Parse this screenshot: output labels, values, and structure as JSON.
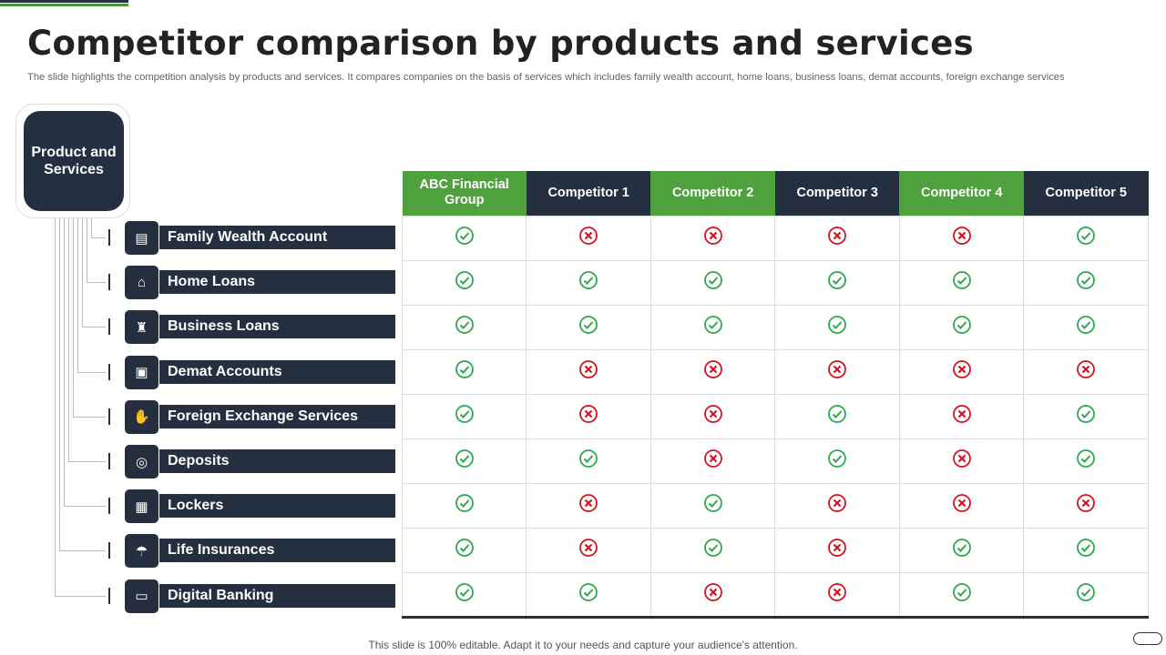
{
  "title": "Competitor comparison by products and services",
  "subtitle": "The slide highlights the competition analysis by products and services. It compares companies on the basis of services which includes family wealth account, home loans, business loans, demat accounts, foreign exchange services",
  "root_label": "Product and Services",
  "colors": {
    "dark": "#243040",
    "green_header": "#4fa13d",
    "check": "#2ea84e",
    "cross": "#d2141e"
  },
  "columns": [
    {
      "label": "ABC Financial Group",
      "style": "green"
    },
    {
      "label": "Competitor 1",
      "style": "dark"
    },
    {
      "label": "Competitor 2",
      "style": "green"
    },
    {
      "label": "Competitor 3",
      "style": "dark"
    },
    {
      "label": "Competitor 4",
      "style": "green"
    },
    {
      "label": "Competitor 5",
      "style": "dark"
    }
  ],
  "rows": [
    {
      "label": "Family Wealth Account",
      "icon": "family-account-icon",
      "values": [
        true,
        false,
        false,
        false,
        false,
        true
      ]
    },
    {
      "label": "Home Loans",
      "icon": "house-percent-icon",
      "values": [
        true,
        true,
        true,
        true,
        true,
        true
      ]
    },
    {
      "label": "Business  Loans",
      "icon": "business-building-icon",
      "values": [
        true,
        true,
        true,
        true,
        true,
        true
      ]
    },
    {
      "label": "Demat Accounts",
      "icon": "id-card-icon",
      "values": [
        true,
        false,
        false,
        false,
        false,
        false
      ]
    },
    {
      "label": "Foreign Exchange Services",
      "icon": "hand-money-icon",
      "values": [
        true,
        false,
        false,
        true,
        false,
        true
      ]
    },
    {
      "label": "Deposits",
      "icon": "coin-icon",
      "values": [
        true,
        true,
        false,
        true,
        false,
        true
      ]
    },
    {
      "label": "Lockers",
      "icon": "safe-icon",
      "values": [
        true,
        false,
        true,
        false,
        false,
        false
      ]
    },
    {
      "label": "Life Insurances",
      "icon": "family-umbrella-icon",
      "values": [
        true,
        false,
        true,
        false,
        true,
        true
      ]
    },
    {
      "label": "Digital Banking",
      "icon": "laptop-megaphone-icon",
      "values": [
        true,
        true,
        false,
        false,
        true,
        true
      ]
    }
  ],
  "footer": "This slide is 100% editable. Adapt it to your needs and capture your audience's attention."
}
